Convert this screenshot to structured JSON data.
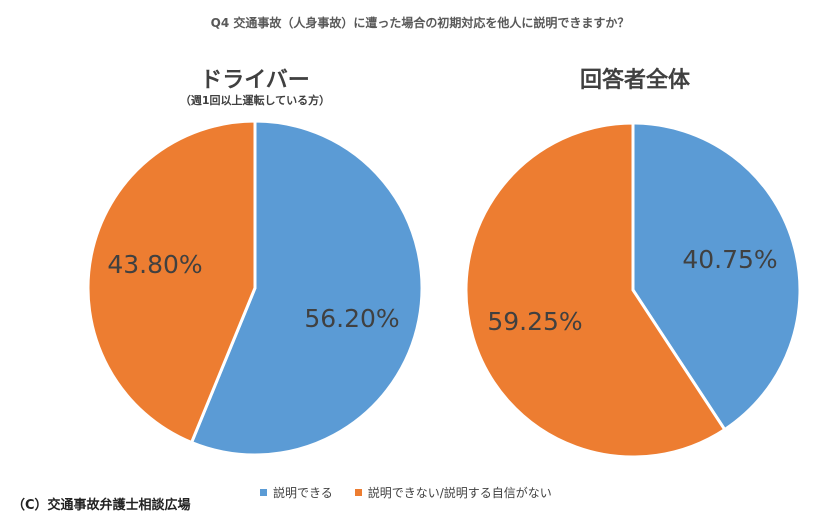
{
  "question": "Q4 交通事故（人身事故）に遭った場合の初期対応を他人に説明できますか？",
  "colors": {
    "can_explain": "#5B9BD5",
    "cannot_explain": "#ED7D31",
    "slice_border": "#ffffff"
  },
  "legend": [
    {
      "label": "説明できる",
      "color": "#5B9BD5"
    },
    {
      "label": "説明できない/説明する自信がない",
      "color": "#ED7D31"
    }
  ],
  "credit": "（C）交通事故弁護士相談広場",
  "chart_data": [
    {
      "type": "pie",
      "title": "ドライバー",
      "subtitle": "（週1回以上運転している方）",
      "slices": [
        {
          "label": "説明できる",
          "value": 56.2,
          "display": "56.20%"
        },
        {
          "label": "説明できない/説明する自信がない",
          "value": 43.8,
          "display": "43.80%"
        }
      ]
    },
    {
      "type": "pie",
      "title": "回答者全体",
      "subtitle": "",
      "slices": [
        {
          "label": "説明できる",
          "value": 40.75,
          "display": "40.75%"
        },
        {
          "label": "説明できない/説明する自信がない",
          "value": 59.25,
          "display": "59.25%"
        }
      ]
    }
  ]
}
